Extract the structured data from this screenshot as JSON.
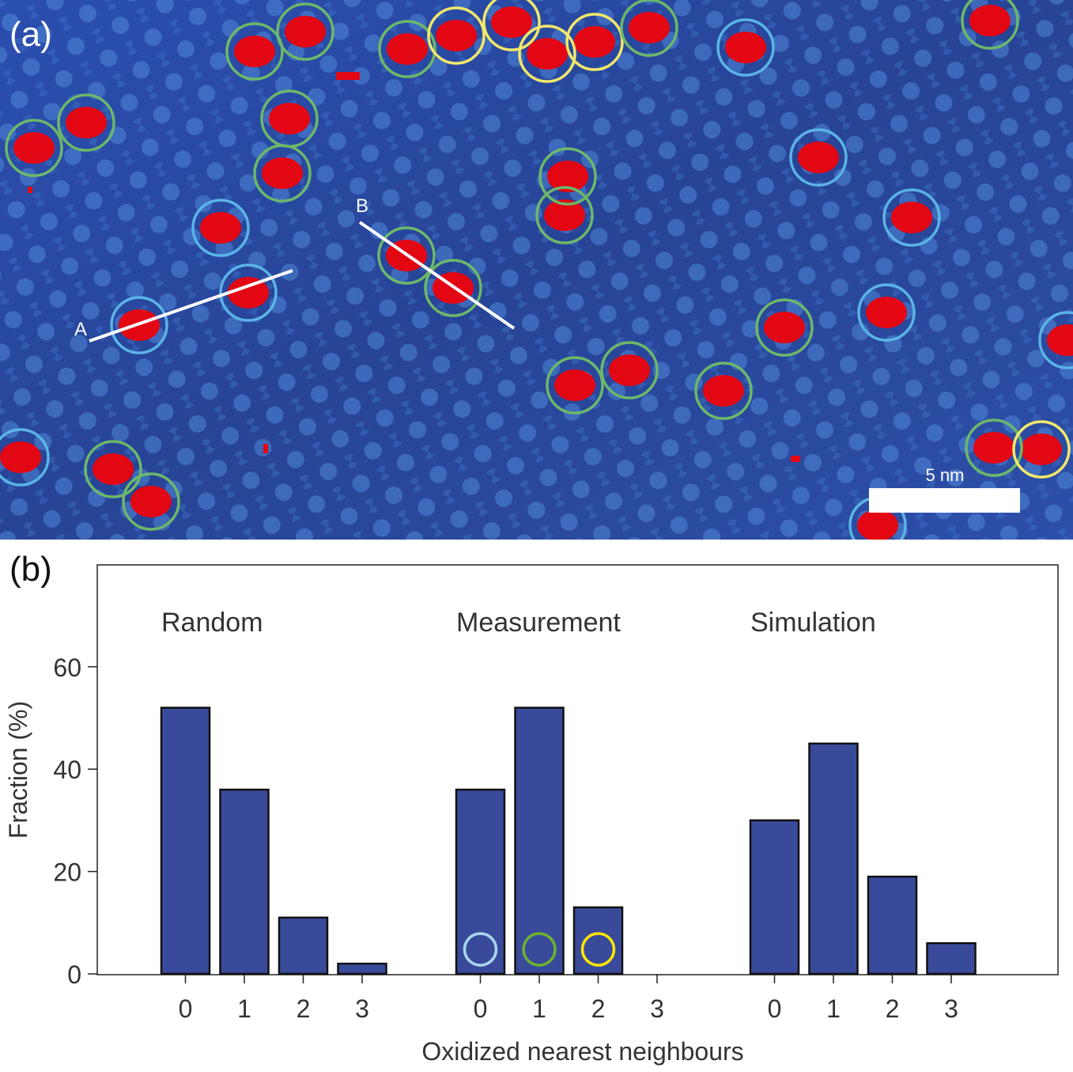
{
  "panel_a": {
    "label": "(a)",
    "scale_bar_label": "5 nm",
    "line_labels": [
      "A",
      "B"
    ],
    "colors": {
      "background": "#2a4aa8",
      "oxidized_site": "#e30613",
      "ring_0_neighbours": "#5ab4e6",
      "ring_1_neighbour": "#6cb86a",
      "ring_2_neighbours": "#f2e86a",
      "scale_bar": "#ffffff"
    }
  },
  "panel_b": {
    "label": "(b)"
  },
  "chart_data": {
    "type": "bar",
    "xlabel": "Oxidized nearest neighbours",
    "ylabel": "Fraction (%)",
    "ylim": [
      0,
      70
    ],
    "yticks": [
      0,
      20,
      40,
      60
    ],
    "categories": [
      "0",
      "1",
      "2",
      "3"
    ],
    "groups": [
      {
        "name": "Random",
        "values": [
          52,
          36,
          11,
          2
        ]
      },
      {
        "name": "Measurement",
        "values": [
          36,
          52,
          13,
          0
        ],
        "markers": [
          "#a6d8f0",
          "#6cb32e",
          "#ffe800"
        ]
      },
      {
        "name": "Simulation",
        "values": [
          30,
          45,
          19,
          6
        ]
      }
    ],
    "bar_color": "#3a4a9a",
    "bar_edge": "#111111",
    "grid": false
  }
}
